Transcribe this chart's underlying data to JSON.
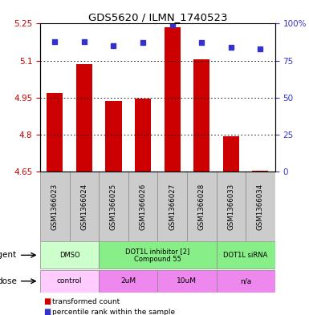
{
  "title": "GDS5620 / ILMN_1740523",
  "samples": [
    "GSM1366023",
    "GSM1366024",
    "GSM1366025",
    "GSM1366026",
    "GSM1366027",
    "GSM1366028",
    "GSM1366033",
    "GSM1366034"
  ],
  "bar_values": [
    4.97,
    5.085,
    4.935,
    4.945,
    5.235,
    5.105,
    4.795,
    4.655
  ],
  "bar_bottom": 4.65,
  "percentile_values": [
    88,
    88,
    85,
    87,
    99,
    87,
    84,
    83
  ],
  "ylim": [
    4.65,
    5.25
  ],
  "yticks": [
    4.65,
    4.8,
    4.95,
    5.1,
    5.25
  ],
  "ytick_labels": [
    "4.65",
    "4.8",
    "4.95",
    "5.1",
    "5.25"
  ],
  "y2ticks": [
    0,
    25,
    50,
    75,
    100
  ],
  "y2tick_labels": [
    "0",
    "25",
    "50",
    "75",
    "100%"
  ],
  "bar_color": "#cc0000",
  "dot_color": "#3333cc",
  "agent_groups": [
    {
      "label": "DMSO",
      "start": 0,
      "end": 2,
      "color": "#ccffcc"
    },
    {
      "label": "DOT1L inhibitor [2]\nCompound 55",
      "start": 2,
      "end": 6,
      "color": "#88ee88"
    },
    {
      "label": "DOT1L siRNA",
      "start": 6,
      "end": 8,
      "color": "#88ee88"
    }
  ],
  "dose_groups": [
    {
      "label": "control",
      "start": 0,
      "end": 2,
      "color": "#ffccff"
    },
    {
      "label": "2uM",
      "start": 2,
      "end": 4,
      "color": "#ee88ee"
    },
    {
      "label": "10uM",
      "start": 4,
      "end": 6,
      "color": "#ee88ee"
    },
    {
      "label": "n/a",
      "start": 6,
      "end": 8,
      "color": "#ee88ee"
    }
  ]
}
